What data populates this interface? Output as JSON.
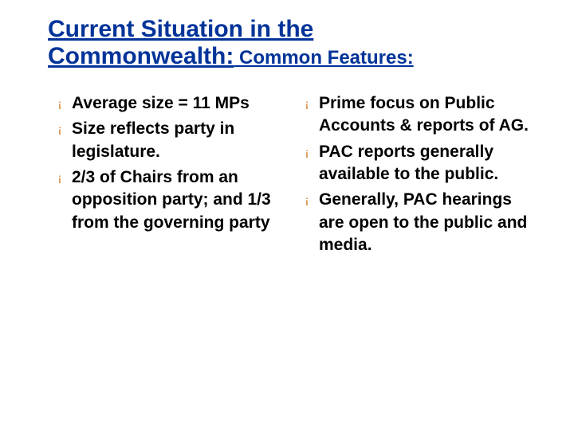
{
  "title": {
    "line1": "Current Situation in the",
    "line2_main": "Commonwealth:",
    "line2_sub": " Common Features:"
  },
  "colors": {
    "title": "#003399",
    "bullet_marker": "#cc6600",
    "body_text": "#000000",
    "background": "#ffffff"
  },
  "typography": {
    "title_main_fontsize": 30,
    "title_sub_fontsize": 24,
    "body_fontsize": 21,
    "body_weight": "bold",
    "font_family": "Verdana"
  },
  "bullet_glyph": "¡",
  "left_column": [
    "Average size = 11 MPs",
    "Size reflects party in legislature.",
    "2/3 of Chairs from an opposition party; and 1/3 from the governing party"
  ],
  "right_column": [
    "Prime focus on Public Accounts & reports of AG.",
    "PAC reports generally available to the public.",
    "Generally, PAC hearings are open to the public and media."
  ]
}
